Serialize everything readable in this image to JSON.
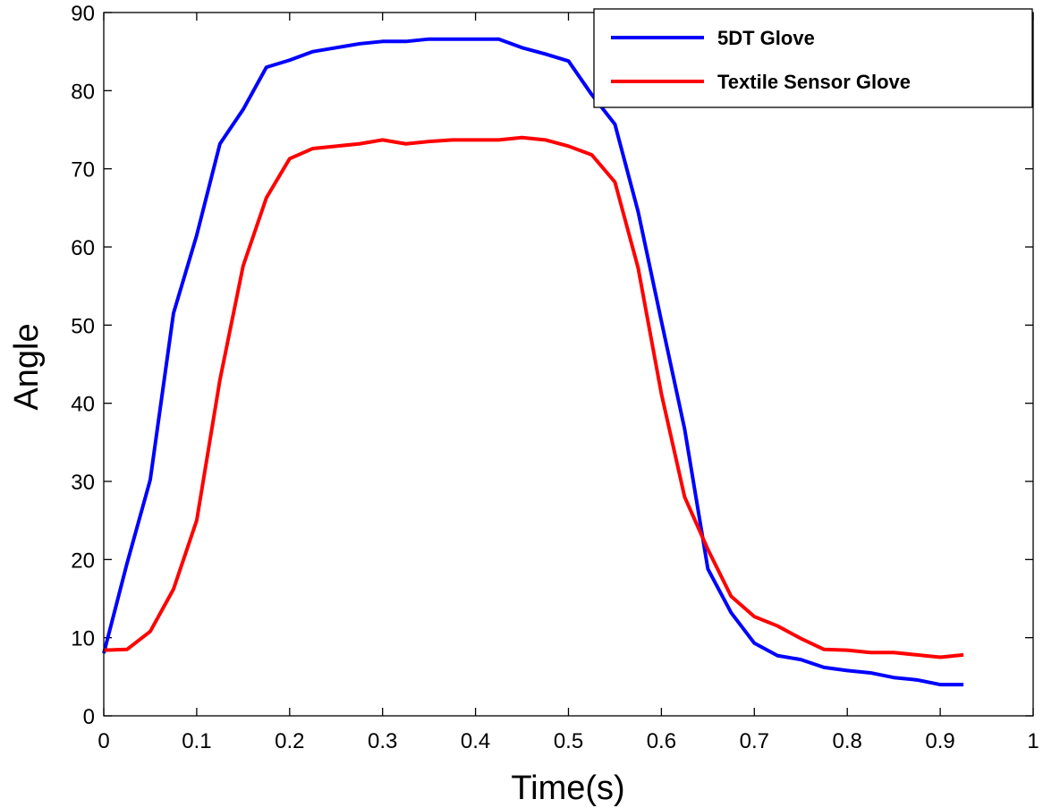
{
  "chart_data": {
    "type": "line",
    "xlabel": "Time(s)",
    "ylabel": "Angle",
    "xlim": [
      0,
      1
    ],
    "ylim": [
      0,
      90
    ],
    "xticks": [
      0,
      0.1,
      0.2,
      0.3,
      0.4,
      0.5,
      0.6,
      0.7,
      0.8,
      0.9,
      1
    ],
    "xtick_labels": [
      "0",
      "0.1",
      "0.2",
      "0.3",
      "0.4",
      "0.5",
      "0.6",
      "0.7",
      "0.8",
      "0.9",
      "1"
    ],
    "yticks": [
      0,
      10,
      20,
      30,
      40,
      50,
      60,
      70,
      80,
      90
    ],
    "ytick_labels": [
      "0",
      "10",
      "20",
      "30",
      "40",
      "50",
      "60",
      "70",
      "80",
      "90"
    ],
    "grid": false,
    "legend_position": "top-right",
    "x": [
      0,
      0.025,
      0.05,
      0.075,
      0.1,
      0.125,
      0.15,
      0.175,
      0.2,
      0.225,
      0.25,
      0.275,
      0.3,
      0.325,
      0.35,
      0.375,
      0.4,
      0.425,
      0.45,
      0.475,
      0.5,
      0.525,
      0.55,
      0.575,
      0.6,
      0.625,
      0.65,
      0.675,
      0.7,
      0.725,
      0.75,
      0.775,
      0.8,
      0.825,
      0.85,
      0.875,
      0.9,
      0.925
    ],
    "series": [
      {
        "name": "5DT Glove",
        "color": "#0000ff",
        "values": [
          8,
          19.5,
          30.2,
          51.5,
          61.5,
          73.2,
          77.6,
          83,
          83.9,
          85,
          85.5,
          86,
          86.3,
          86.3,
          86.6,
          86.6,
          86.6,
          86.6,
          85.5,
          84.7,
          83.8,
          79.5,
          75.7,
          64.5,
          50.5,
          36.7,
          18.8,
          13.2,
          9.3,
          7.7,
          7.2,
          6.2,
          5.8,
          5.5,
          4.9,
          4.6,
          4,
          4
        ]
      },
      {
        "name": "Textile Sensor Glove",
        "color": "#ff0000",
        "values": [
          8.4,
          8.5,
          10.8,
          16.2,
          25,
          43,
          57.6,
          66.3,
          71.3,
          72.6,
          72.9,
          73.2,
          73.7,
          73.2,
          73.5,
          73.7,
          73.7,
          73.7,
          74,
          73.7,
          72.9,
          71.8,
          68.3,
          57.3,
          41.2,
          28,
          21.3,
          15.3,
          12.7,
          11.5,
          9.9,
          8.5,
          8.4,
          8.1,
          8.1,
          7.8,
          7.5,
          7.8
        ]
      }
    ]
  }
}
